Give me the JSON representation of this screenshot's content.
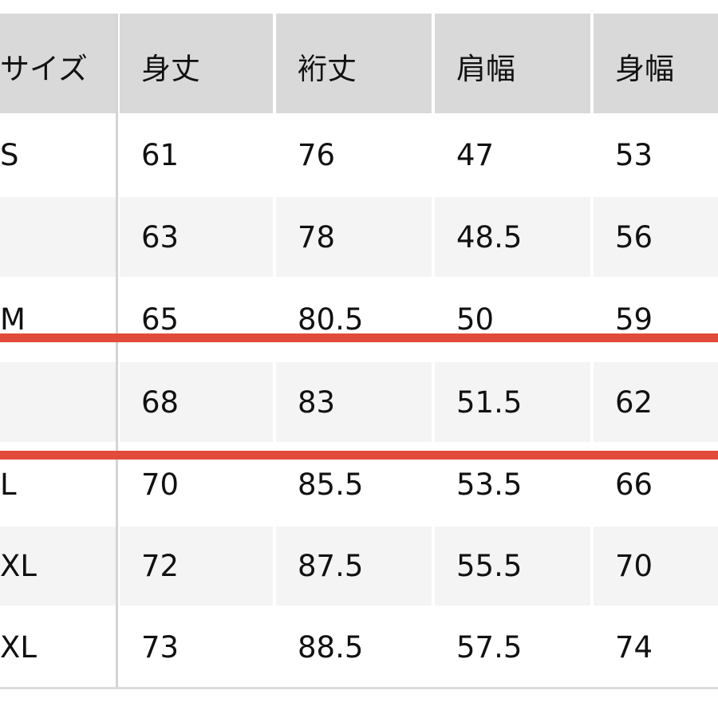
{
  "table": {
    "headers": [
      "サイズ",
      "身丈",
      "裄丈",
      "肩幅",
      "身幅"
    ],
    "rows": [
      [
        "S",
        "61",
        "76",
        "47",
        "53"
      ],
      [
        "",
        "63",
        "78",
        "48.5",
        "56"
      ],
      [
        "M",
        "65",
        "80.5",
        "50",
        "59"
      ],
      [
        "",
        "68",
        "83",
        "51.5",
        "62"
      ],
      [
        "L",
        "70",
        "85.5",
        "53.5",
        "66"
      ],
      [
        "XL",
        "72",
        "87.5",
        "55.5",
        "70"
      ],
      [
        "XL",
        "73",
        "88.5",
        "57.5",
        "74"
      ]
    ]
  },
  "highlight": {
    "color": "#e24a3b",
    "highlighted_row_index": 3
  }
}
